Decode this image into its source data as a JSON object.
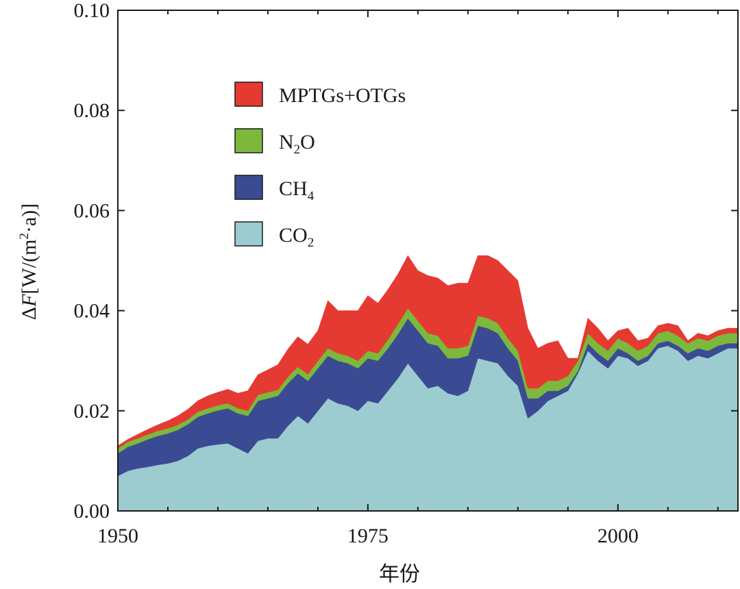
{
  "chart_data": {
    "type": "area",
    "stacked": true,
    "title": "",
    "xlabel": "年份",
    "ylabel_parts": {
      "delta": "Δ",
      "var": "F",
      "unit_open": "[W/(m",
      "sup": "2",
      "unit_close": "·a)]"
    },
    "xlim": [
      1950,
      2012
    ],
    "ylim": [
      0,
      0.1
    ],
    "x_ticks": [
      1950,
      1975,
      2000
    ],
    "x_tick_labels": [
      "1950",
      "1975",
      "2000"
    ],
    "x_minor_step": 5,
    "y_ticks": [
      0,
      0.02,
      0.04,
      0.06,
      0.08,
      0.1
    ],
    "y_tick_labels": [
      "0.00",
      "0.02",
      "0.04",
      "0.06",
      "0.08",
      "0.10"
    ],
    "legend_position": "upper-left",
    "x": [
      1950,
      1951,
      1952,
      1953,
      1954,
      1955,
      1956,
      1957,
      1958,
      1959,
      1960,
      1961,
      1962,
      1963,
      1964,
      1965,
      1966,
      1967,
      1968,
      1969,
      1970,
      1971,
      1972,
      1973,
      1974,
      1975,
      1976,
      1977,
      1978,
      1979,
      1980,
      1981,
      1982,
      1983,
      1984,
      1985,
      1986,
      1987,
      1988,
      1989,
      1990,
      1991,
      1992,
      1993,
      1994,
      1995,
      1996,
      1997,
      1998,
      1999,
      2000,
      2001,
      2002,
      2003,
      2004,
      2005,
      2006,
      2007,
      2008,
      2009,
      2010,
      2011,
      2012
    ],
    "series": [
      {
        "name": "CO2",
        "label_base": "CO",
        "label_sub": "2",
        "color": "#9ccccf",
        "values": [
          0.007,
          0.008,
          0.0085,
          0.0088,
          0.0092,
          0.0095,
          0.01,
          0.011,
          0.0125,
          0.013,
          0.0133,
          0.0135,
          0.0125,
          0.0115,
          0.014,
          0.0145,
          0.0145,
          0.017,
          0.019,
          0.0175,
          0.02,
          0.0225,
          0.0215,
          0.021,
          0.02,
          0.022,
          0.0215,
          0.024,
          0.0265,
          0.0295,
          0.027,
          0.0245,
          0.025,
          0.0235,
          0.023,
          0.024,
          0.0305,
          0.03,
          0.0295,
          0.027,
          0.025,
          0.0185,
          0.02,
          0.022,
          0.023,
          0.024,
          0.0275,
          0.032,
          0.03,
          0.0285,
          0.031,
          0.0305,
          0.029,
          0.03,
          0.0325,
          0.033,
          0.032,
          0.03,
          0.031,
          0.0305,
          0.0315,
          0.0325,
          0.0325
        ]
      },
      {
        "name": "CH4",
        "label_base": "CH",
        "label_sub": "4",
        "color": "#3a4b93",
        "values": [
          0.0045,
          0.0048,
          0.005,
          0.0055,
          0.0058,
          0.006,
          0.0062,
          0.0063,
          0.0063,
          0.0065,
          0.0068,
          0.007,
          0.007,
          0.0075,
          0.008,
          0.008,
          0.0085,
          0.0085,
          0.0085,
          0.0085,
          0.0085,
          0.0085,
          0.0085,
          0.0085,
          0.0085,
          0.0085,
          0.0085,
          0.0085,
          0.0088,
          0.009,
          0.009,
          0.009,
          0.008,
          0.007,
          0.0075,
          0.007,
          0.0065,
          0.0065,
          0.006,
          0.0055,
          0.005,
          0.004,
          0.0025,
          0.002,
          0.001,
          0.001,
          0.0005,
          0.0015,
          0.0015,
          0.0015,
          0.0015,
          0.001,
          0.001,
          0.001,
          0.001,
          0.001,
          0.001,
          0.0015,
          0.0015,
          0.0015,
          0.0015,
          0.001,
          0.001
        ]
      },
      {
        "name": "N2O",
        "label_base": "N",
        "label_sub": "2",
        "label_after": "O",
        "color": "#7cb83c",
        "values": [
          0.001,
          0.001,
          0.001,
          0.001,
          0.001,
          0.001,
          0.001,
          0.001,
          0.001,
          0.001,
          0.001,
          0.001,
          0.001,
          0.001,
          0.0012,
          0.0012,
          0.0012,
          0.0013,
          0.0013,
          0.0013,
          0.0015,
          0.0015,
          0.0015,
          0.0015,
          0.0015,
          0.0015,
          0.0015,
          0.0017,
          0.002,
          0.002,
          0.002,
          0.002,
          0.002,
          0.002,
          0.002,
          0.002,
          0.002,
          0.002,
          0.002,
          0.002,
          0.002,
          0.002,
          0.002,
          0.002,
          0.002,
          0.002,
          0.002,
          0.002,
          0.002,
          0.002,
          0.002,
          0.002,
          0.002,
          0.002,
          0.002,
          0.002,
          0.002,
          0.002,
          0.002,
          0.002,
          0.002,
          0.002,
          0.002
        ]
      },
      {
        "name": "MPTGs+OTGs",
        "label_base": "MPTGs+OTGs",
        "label_sub": "",
        "color": "#e53a32",
        "values": [
          0.0005,
          0.0005,
          0.0008,
          0.001,
          0.0012,
          0.0015,
          0.0018,
          0.002,
          0.0022,
          0.0025,
          0.0026,
          0.0028,
          0.003,
          0.004,
          0.004,
          0.0045,
          0.005,
          0.0055,
          0.006,
          0.006,
          0.006,
          0.0095,
          0.0085,
          0.009,
          0.01,
          0.011,
          0.01,
          0.01,
          0.01,
          0.0105,
          0.01,
          0.0115,
          0.0115,
          0.0125,
          0.013,
          0.0125,
          0.012,
          0.0125,
          0.0125,
          0.0135,
          0.014,
          0.012,
          0.008,
          0.0075,
          0.008,
          0.0035,
          0.0005,
          0.003,
          0.003,
          0.002,
          0.0015,
          0.003,
          0.002,
          0.0015,
          0.0015,
          0.0015,
          0.002,
          0.0005,
          0.001,
          0.001,
          0.001,
          0.001,
          0.001
        ]
      }
    ]
  }
}
